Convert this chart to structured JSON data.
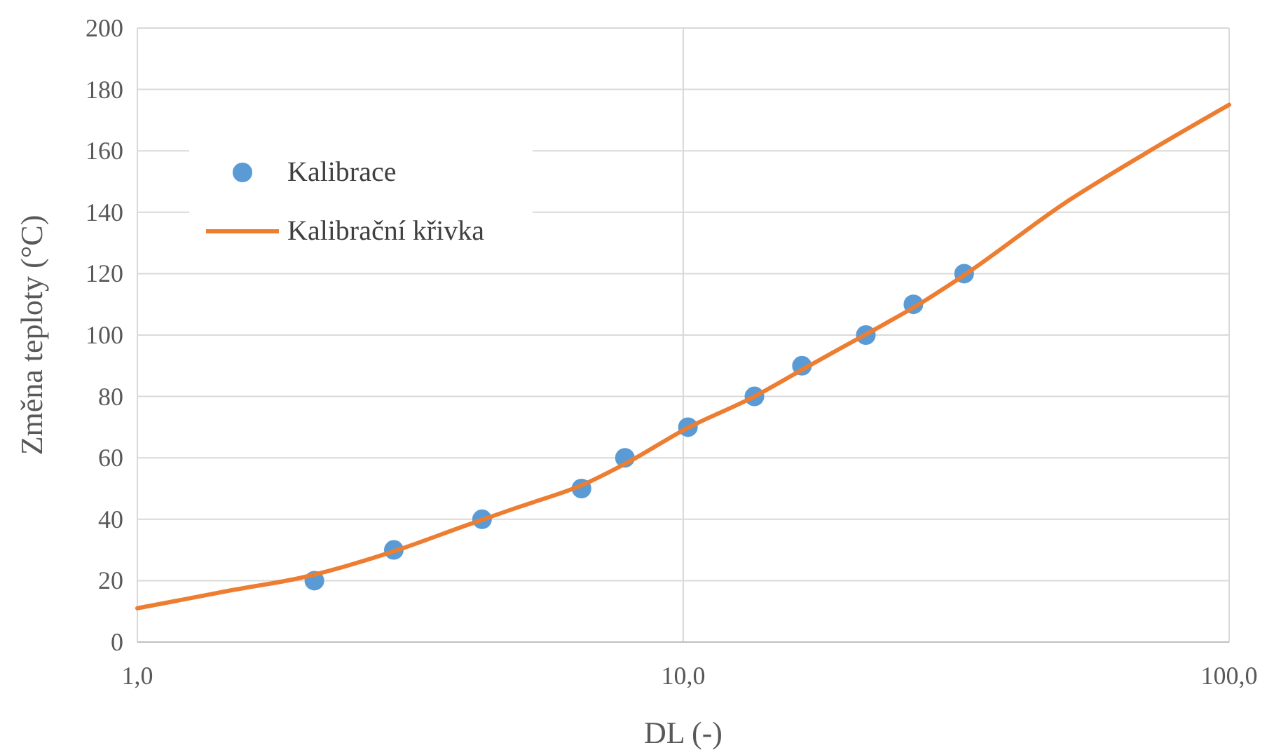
{
  "chart_data": {
    "type": "scatter",
    "xlabel": "DL (-)",
    "ylabel": "Změna teploty (°C)",
    "log": "x",
    "xlim": [
      1,
      100
    ],
    "xticks": [
      {
        "value": 1,
        "label": "1,0"
      },
      {
        "value": 10,
        "label": "10,0"
      },
      {
        "value": 100,
        "label": "100,0"
      }
    ],
    "ylim": [
      0,
      200
    ],
    "yticks": [
      0,
      20,
      40,
      60,
      80,
      100,
      120,
      140,
      160,
      180,
      200
    ],
    "grid": true,
    "legend": "top left",
    "series": [
      {
        "name": "Kalibrace",
        "marker": "circle",
        "color": "#5b9bd5",
        "x": [
          2.11,
          2.95,
          4.28,
          6.51,
          7.82,
          10.2,
          13.5,
          16.5,
          21.6,
          26.4,
          32.7
        ],
        "values": [
          20,
          30,
          40,
          50,
          60,
          70,
          80,
          90,
          100,
          110,
          120
        ]
      },
      {
        "name": "Kalibrační křivka",
        "type": "line",
        "marker": "none",
        "color": "#ed7d31",
        "x": [
          1,
          1.5,
          2,
          3,
          4,
          5,
          6.5,
          8,
          10,
          13.5,
          17,
          22,
          27,
          33,
          50,
          70,
          100
        ],
        "values": [
          11,
          17,
          21,
          30,
          38,
          44,
          51,
          59,
          69,
          80,
          90,
          101,
          110,
          120,
          143,
          159,
          175
        ]
      }
    ]
  }
}
